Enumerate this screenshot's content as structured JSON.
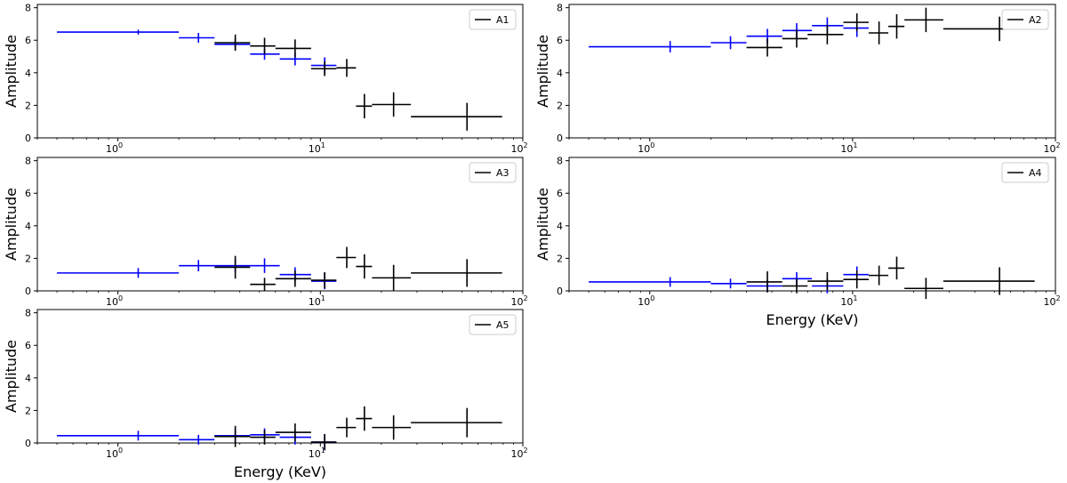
{
  "figure": {
    "ylabel": "Amplitude",
    "xlabel": "Energy (KeV)",
    "colors": {
      "black": "#000000",
      "blue": "#0000ff",
      "axis": "#000000"
    }
  },
  "chart_data": [
    {
      "type": "scatter",
      "panel": "A1",
      "title": "",
      "legend": "A1",
      "legend_position": "top-right",
      "xscale": "log",
      "xlim": [
        0.4,
        100
      ],
      "ylim": [
        0,
        8.2
      ],
      "xticks": [
        1,
        10,
        100
      ],
      "yticks": [
        0,
        2,
        4,
        6,
        8
      ],
      "show_xlabel": false,
      "series": [
        {
          "color": "#0000ff",
          "points": [
            {
              "x": 1.26,
              "xlo": 0.5,
              "xhi": 2.0,
              "y": 6.5,
              "yerr": 0.15
            },
            {
              "x": 2.5,
              "xlo": 2.0,
              "xhi": 3.0,
              "y": 6.15,
              "yerr": 0.3
            },
            {
              "x": 3.8,
              "xlo": 3.0,
              "xhi": 4.5,
              "y": 5.75,
              "yerr": 0.35
            },
            {
              "x": 5.3,
              "xlo": 4.5,
              "xhi": 6.3,
              "y": 5.15,
              "yerr": 0.35
            },
            {
              "x": 7.5,
              "xlo": 6.3,
              "xhi": 9.0,
              "y": 4.85,
              "yerr": 0.4
            },
            {
              "x": 10.5,
              "xlo": 9.0,
              "xhi": 12.0,
              "y": 4.45,
              "yerr": 0.5
            }
          ]
        },
        {
          "color": "#000000",
          "points": [
            {
              "x": 3.8,
              "xlo": 3.0,
              "xhi": 4.5,
              "y": 5.85,
              "yerr": 0.5
            },
            {
              "x": 5.3,
              "xlo": 4.5,
              "xhi": 6.0,
              "y": 5.65,
              "yerr": 0.5
            },
            {
              "x": 7.5,
              "xlo": 6.0,
              "xhi": 9.0,
              "y": 5.5,
              "yerr": 0.55
            },
            {
              "x": 10.5,
              "xlo": 9.0,
              "xhi": 12.0,
              "y": 4.25,
              "yerr": 0.45
            },
            {
              "x": 13.5,
              "xlo": 12.0,
              "xhi": 15.0,
              "y": 4.3,
              "yerr": 0.55
            },
            {
              "x": 16.5,
              "xlo": 15.0,
              "xhi": 18.0,
              "y": 1.95,
              "yerr": 0.75
            },
            {
              "x": 23,
              "xlo": 18.0,
              "xhi": 28.0,
              "y": 2.05,
              "yerr": 0.75
            },
            {
              "x": 53,
              "xlo": 28.0,
              "xhi": 79.0,
              "y": 1.3,
              "yerr": 0.85
            }
          ]
        }
      ]
    },
    {
      "type": "scatter",
      "panel": "A2",
      "title": "",
      "legend": "A2",
      "legend_position": "top-right",
      "xscale": "log",
      "xlim": [
        0.4,
        100
      ],
      "ylim": [
        0,
        8.2
      ],
      "xticks": [
        1,
        10,
        100
      ],
      "yticks": [
        0,
        2,
        4,
        6,
        8
      ],
      "show_xlabel": false,
      "series": [
        {
          "color": "#0000ff",
          "points": [
            {
              "x": 1.26,
              "xlo": 0.5,
              "xhi": 2.0,
              "y": 5.6,
              "yerr": 0.35
            },
            {
              "x": 2.5,
              "xlo": 2.0,
              "xhi": 3.0,
              "y": 5.85,
              "yerr": 0.4
            },
            {
              "x": 3.8,
              "xlo": 3.0,
              "xhi": 4.5,
              "y": 6.25,
              "yerr": 0.45
            },
            {
              "x": 5.3,
              "xlo": 4.5,
              "xhi": 6.3,
              "y": 6.6,
              "yerr": 0.45
            },
            {
              "x": 7.5,
              "xlo": 6.3,
              "xhi": 9.0,
              "y": 6.9,
              "yerr": 0.5
            },
            {
              "x": 10.5,
              "xlo": 9.0,
              "xhi": 12.0,
              "y": 6.75,
              "yerr": 0.55
            }
          ]
        },
        {
          "color": "#000000",
          "points": [
            {
              "x": 3.8,
              "xlo": 3.0,
              "xhi": 4.5,
              "y": 5.55,
              "yerr": 0.55
            },
            {
              "x": 5.3,
              "xlo": 4.5,
              "xhi": 6.0,
              "y": 6.1,
              "yerr": 0.55
            },
            {
              "x": 7.5,
              "xlo": 6.0,
              "xhi": 9.0,
              "y": 6.35,
              "yerr": 0.6
            },
            {
              "x": 10.5,
              "xlo": 9.0,
              "xhi": 12.0,
              "y": 7.1,
              "yerr": 0.55
            },
            {
              "x": 13.5,
              "xlo": 12.0,
              "xhi": 15.0,
              "y": 6.45,
              "yerr": 0.7
            },
            {
              "x": 16.5,
              "xlo": 15.0,
              "xhi": 18.0,
              "y": 6.85,
              "yerr": 0.75
            },
            {
              "x": 23,
              "xlo": 18.0,
              "xhi": 28.0,
              "y": 7.25,
              "yerr": 0.75
            },
            {
              "x": 53,
              "xlo": 28.0,
              "xhi": 79.0,
              "y": 6.7,
              "yerr": 0.75
            }
          ]
        }
      ]
    },
    {
      "type": "scatter",
      "panel": "A3",
      "title": "",
      "legend": "A3",
      "legend_position": "top-right",
      "xscale": "log",
      "xlim": [
        0.4,
        100
      ],
      "ylim": [
        0,
        8.2
      ],
      "xticks": [
        1,
        10,
        100
      ],
      "yticks": [
        0,
        2,
        4,
        6,
        8
      ],
      "show_xlabel": false,
      "series": [
        {
          "color": "#0000ff",
          "points": [
            {
              "x": 1.26,
              "xlo": 0.5,
              "xhi": 2.0,
              "y": 1.1,
              "yerr": 0.3
            },
            {
              "x": 2.5,
              "xlo": 2.0,
              "xhi": 3.0,
              "y": 1.55,
              "yerr": 0.35
            },
            {
              "x": 3.8,
              "xlo": 3.0,
              "xhi": 4.5,
              "y": 1.55,
              "yerr": 0.4
            },
            {
              "x": 5.3,
              "xlo": 4.5,
              "xhi": 6.3,
              "y": 1.55,
              "yerr": 0.45
            },
            {
              "x": 7.5,
              "xlo": 6.3,
              "xhi": 9.0,
              "y": 1.0,
              "yerr": 0.45
            },
            {
              "x": 10.5,
              "xlo": 9.0,
              "xhi": 12.0,
              "y": 0.6,
              "yerr": 0.5
            }
          ]
        },
        {
          "color": "#000000",
          "points": [
            {
              "x": 3.8,
              "xlo": 3.0,
              "xhi": 4.5,
              "y": 1.45,
              "yerr": 0.7
            },
            {
              "x": 5.3,
              "xlo": 4.5,
              "xhi": 6.0,
              "y": 0.4,
              "yerr": 0.4
            },
            {
              "x": 7.5,
              "xlo": 6.0,
              "xhi": 9.0,
              "y": 0.75,
              "yerr": 0.5
            },
            {
              "x": 10.5,
              "xlo": 9.0,
              "xhi": 12.0,
              "y": 0.65,
              "yerr": 0.5
            },
            {
              "x": 13.5,
              "xlo": 12.0,
              "xhi": 15.0,
              "y": 2.05,
              "yerr": 0.65
            },
            {
              "x": 16.5,
              "xlo": 15.0,
              "xhi": 18.0,
              "y": 1.5,
              "yerr": 0.75
            },
            {
              "x": 23,
              "xlo": 18.0,
              "xhi": 28.0,
              "y": 0.8,
              "yerr": 0.8
            },
            {
              "x": 53,
              "xlo": 28.0,
              "xhi": 79.0,
              "y": 1.1,
              "yerr": 0.85
            }
          ]
        }
      ]
    },
    {
      "type": "scatter",
      "panel": "A4",
      "title": "",
      "legend": "A4",
      "legend_position": "top-right",
      "xscale": "log",
      "xlim": [
        0.4,
        100
      ],
      "ylim": [
        0,
        8.2
      ],
      "xticks": [
        1,
        10,
        100
      ],
      "yticks": [
        0,
        2,
        4,
        6,
        8
      ],
      "show_xlabel": true,
      "series": [
        {
          "color": "#0000ff",
          "points": [
            {
              "x": 1.26,
              "xlo": 0.5,
              "xhi": 2.0,
              "y": 0.55,
              "yerr": 0.3
            },
            {
              "x": 2.5,
              "xlo": 2.0,
              "xhi": 3.0,
              "y": 0.45,
              "yerr": 0.3
            },
            {
              "x": 3.8,
              "xlo": 3.0,
              "xhi": 4.5,
              "y": 0.3,
              "yerr": 0.35
            },
            {
              "x": 5.3,
              "xlo": 4.5,
              "xhi": 6.3,
              "y": 0.75,
              "yerr": 0.4
            },
            {
              "x": 7.5,
              "xlo": 6.3,
              "xhi": 9.0,
              "y": 0.3,
              "yerr": 0.45
            },
            {
              "x": 10.5,
              "xlo": 9.0,
              "xhi": 12.0,
              "y": 1.0,
              "yerr": 0.5
            }
          ]
        },
        {
          "color": "#000000",
          "points": [
            {
              "x": 3.8,
              "xlo": 3.0,
              "xhi": 4.5,
              "y": 0.55,
              "yerr": 0.65
            },
            {
              "x": 5.3,
              "xlo": 4.5,
              "xhi": 6.0,
              "y": 0.3,
              "yerr": 0.45
            },
            {
              "x": 7.5,
              "xlo": 6.0,
              "xhi": 9.0,
              "y": 0.6,
              "yerr": 0.55
            },
            {
              "x": 10.5,
              "xlo": 9.0,
              "xhi": 12.0,
              "y": 0.7,
              "yerr": 0.55
            },
            {
              "x": 13.5,
              "xlo": 12.0,
              "xhi": 15.0,
              "y": 0.95,
              "yerr": 0.6
            },
            {
              "x": 16.5,
              "xlo": 15.0,
              "xhi": 18.0,
              "y": 1.4,
              "yerr": 0.7
            },
            {
              "x": 23,
              "xlo": 18.0,
              "xhi": 28.0,
              "y": 0.15,
              "yerr": 0.65
            },
            {
              "x": 53,
              "xlo": 28.0,
              "xhi": 79.0,
              "y": 0.6,
              "yerr": 0.85
            }
          ]
        }
      ]
    },
    {
      "type": "scatter",
      "panel": "A5",
      "title": "",
      "legend": "A5",
      "legend_position": "top-right",
      "xscale": "log",
      "xlim": [
        0.4,
        100
      ],
      "ylim": [
        0,
        8.2
      ],
      "xticks": [
        1,
        10,
        100
      ],
      "yticks": [
        0,
        2,
        4,
        6,
        8
      ],
      "show_xlabel": true,
      "series": [
        {
          "color": "#0000ff",
          "points": [
            {
              "x": 1.26,
              "xlo": 0.5,
              "xhi": 2.0,
              "y": 0.45,
              "yerr": 0.3
            },
            {
              "x": 2.5,
              "xlo": 2.0,
              "xhi": 3.0,
              "y": 0.2,
              "yerr": 0.3
            },
            {
              "x": 3.8,
              "xlo": 3.0,
              "xhi": 4.5,
              "y": 0.45,
              "yerr": 0.4
            },
            {
              "x": 5.3,
              "xlo": 4.5,
              "xhi": 6.3,
              "y": 0.5,
              "yerr": 0.4
            },
            {
              "x": 7.5,
              "xlo": 6.3,
              "xhi": 9.0,
              "y": 0.35,
              "yerr": 0.45
            },
            {
              "x": 10.5,
              "xlo": 9.0,
              "xhi": 12.0,
              "y": 0.05,
              "yerr": 0.5
            }
          ]
        },
        {
          "color": "#000000",
          "points": [
            {
              "x": 3.8,
              "xlo": 3.0,
              "xhi": 4.5,
              "y": 0.4,
              "yerr": 0.65
            },
            {
              "x": 5.3,
              "xlo": 4.5,
              "xhi": 6.0,
              "y": 0.35,
              "yerr": 0.45
            },
            {
              "x": 7.5,
              "xlo": 6.0,
              "xhi": 9.0,
              "y": 0.65,
              "yerr": 0.55
            },
            {
              "x": 10.5,
              "xlo": 9.0,
              "xhi": 12.0,
              "y": 0.05,
              "yerr": 0.5
            },
            {
              "x": 13.5,
              "xlo": 12.0,
              "xhi": 15.0,
              "y": 0.95,
              "yerr": 0.6
            },
            {
              "x": 16.5,
              "xlo": 15.0,
              "xhi": 18.0,
              "y": 1.5,
              "yerr": 0.75
            },
            {
              "x": 23,
              "xlo": 18.0,
              "xhi": 28.0,
              "y": 0.95,
              "yerr": 0.75
            },
            {
              "x": 53,
              "xlo": 28.0,
              "xhi": 79.0,
              "y": 1.25,
              "yerr": 0.9
            }
          ]
        }
      ]
    }
  ]
}
